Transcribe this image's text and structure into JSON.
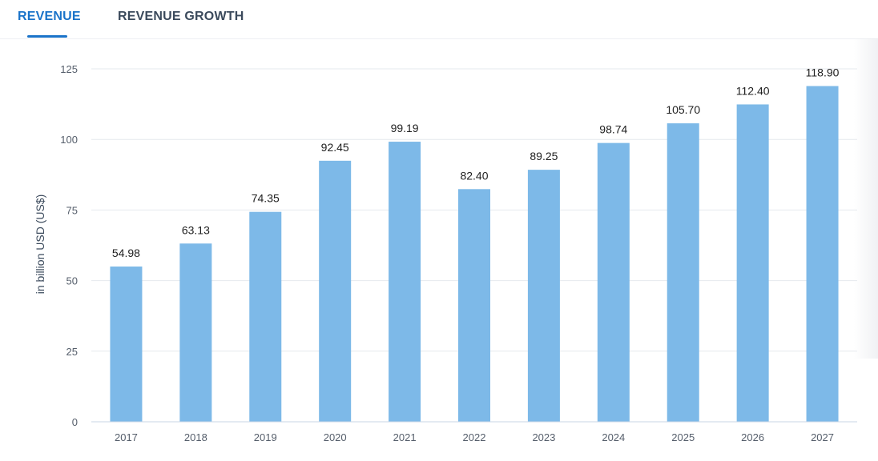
{
  "tabs": [
    {
      "label": "REVENUE",
      "active": true
    },
    {
      "label": "REVENUE GROWTH",
      "active": false
    }
  ],
  "colors": {
    "accent": "#1a73c9",
    "bar": "#7db9e8",
    "grid": "#e6e9ee"
  },
  "chart_data": {
    "type": "bar",
    "categories": [
      "2017",
      "2018",
      "2019",
      "2020",
      "2021",
      "2022",
      "2023",
      "2024",
      "2025",
      "2026",
      "2027"
    ],
    "values": [
      54.98,
      63.13,
      74.35,
      92.45,
      99.19,
      82.4,
      89.25,
      98.74,
      105.7,
      112.4,
      118.9
    ],
    "value_labels": [
      "54.98",
      "63.13",
      "74.35",
      "92.45",
      "99.19",
      "82.40",
      "89.25",
      "98.74",
      "105.70",
      "112.40",
      "118.90"
    ],
    "title": "",
    "xlabel": "",
    "ylabel": "in billion USD (US$)",
    "ylim": [
      0,
      125
    ],
    "yticks": [
      0,
      25,
      50,
      75,
      100,
      125
    ],
    "grid": true
  }
}
